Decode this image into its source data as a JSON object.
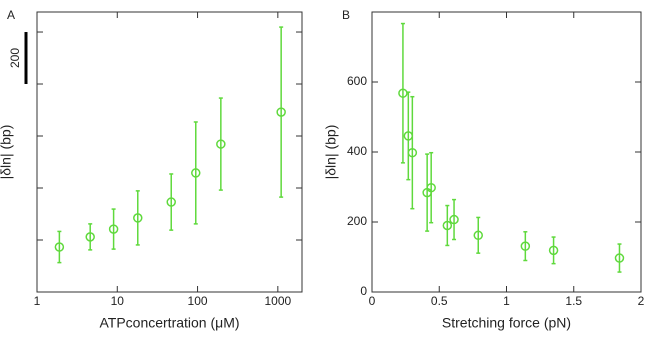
{
  "chart_data": [
    {
      "type": "errorbar",
      "panel_label": "A",
      "x_label": "ATPconcertration (μM)",
      "y_label": "|δln| (bp)",
      "xscale": "log",
      "xlim": [
        1,
        2000
      ],
      "xticks": [
        1,
        10,
        100,
        1000
      ],
      "ylim": [
        0,
        1077
      ],
      "yticks": [
        200,
        400,
        600,
        800,
        1000
      ],
      "scale_bar": {
        "value": 200,
        "label": "200"
      },
      "series": [
        {
          "color": "#5fd93c",
          "x": [
            1.9,
            4.6,
            9,
            18,
            47,
            95,
            195,
            1100
          ],
          "values": [
            173,
            212,
            242,
            285,
            346,
            458,
            569,
            692
          ],
          "errors": [
            60,
            50,
            77,
            104,
            108,
            196,
            177,
            327
          ]
        }
      ]
    },
    {
      "type": "errorbar",
      "panel_label": "B",
      "x_label": "Stretching force (pN)",
      "y_label": "|δln| (bp)",
      "xscale": "linear",
      "xlim": [
        0,
        2
      ],
      "xticks": [
        0,
        0.5,
        1,
        1.5,
        2
      ],
      "ylim": [
        0,
        800
      ],
      "yticks": [
        0,
        200,
        400,
        600
      ],
      "series": [
        {
          "color": "#5fd93c",
          "x": [
            0.23,
            0.27,
            0.3,
            0.41,
            0.44,
            0.56,
            0.61,
            0.79,
            1.14,
            1.35,
            1.84
          ],
          "values": [
            568,
            446,
            398,
            284,
            298,
            190,
            207,
            162,
            131,
            119,
            97
          ],
          "errors": [
            199,
            125,
            160,
            110,
            100,
            57,
            57,
            51,
            41,
            38,
            40
          ]
        }
      ]
    }
  ]
}
